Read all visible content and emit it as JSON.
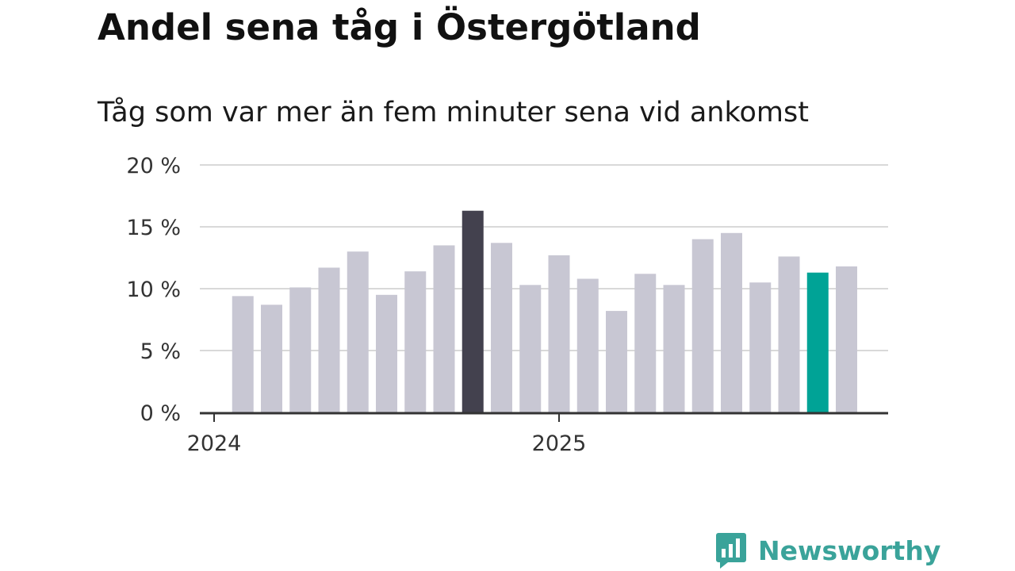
{
  "chart_data": {
    "type": "bar",
    "title": "Andel sena tåg i Östergötland",
    "subtitle": "Tåg som var mer än fem minuter sena vid ankomst",
    "xlabel": "",
    "ylabel": "",
    "ylim": [
      0,
      20
    ],
    "y_ticks": [
      {
        "value": 0,
        "label": "0 %"
      },
      {
        "value": 5,
        "label": "5 %"
      },
      {
        "value": 10,
        "label": "10 %"
      },
      {
        "value": 15,
        "label": "15 %"
      },
      {
        "value": 20,
        "label": "20 %"
      }
    ],
    "x_tick_labels": [
      {
        "index": 0,
        "label": "2024"
      },
      {
        "index": 12,
        "label": "2025"
      }
    ],
    "categories": [
      "2024-01",
      "2024-02",
      "2024-03",
      "2024-04",
      "2024-05",
      "2024-06",
      "2024-07",
      "2024-08",
      "2024-09",
      "2024-10",
      "2024-11",
      "2024-12",
      "2025-01",
      "2025-02",
      "2025-03",
      "2025-04",
      "2025-05",
      "2025-06",
      "2025-07",
      "2025-08",
      "2025-09",
      "2025-10",
      "2025-11",
      "2025-12"
    ],
    "values": [
      null,
      9.4,
      8.7,
      10.1,
      11.7,
      13.0,
      9.5,
      11.4,
      13.5,
      16.3,
      13.7,
      10.3,
      12.7,
      10.8,
      8.2,
      11.2,
      10.3,
      14.0,
      14.5,
      10.5,
      12.6,
      11.3,
      11.8,
      null
    ],
    "highlights": {
      "9": "#43414e",
      "21": "#00a396"
    },
    "colors": {
      "bar": "#c8c7d3",
      "grid": "#d9d9d9",
      "axis": "#333333"
    },
    "grid": true
  },
  "brand": {
    "name": "Newsworthy",
    "icon": "newsworthy-logo-icon",
    "color": "#3aa39a"
  }
}
